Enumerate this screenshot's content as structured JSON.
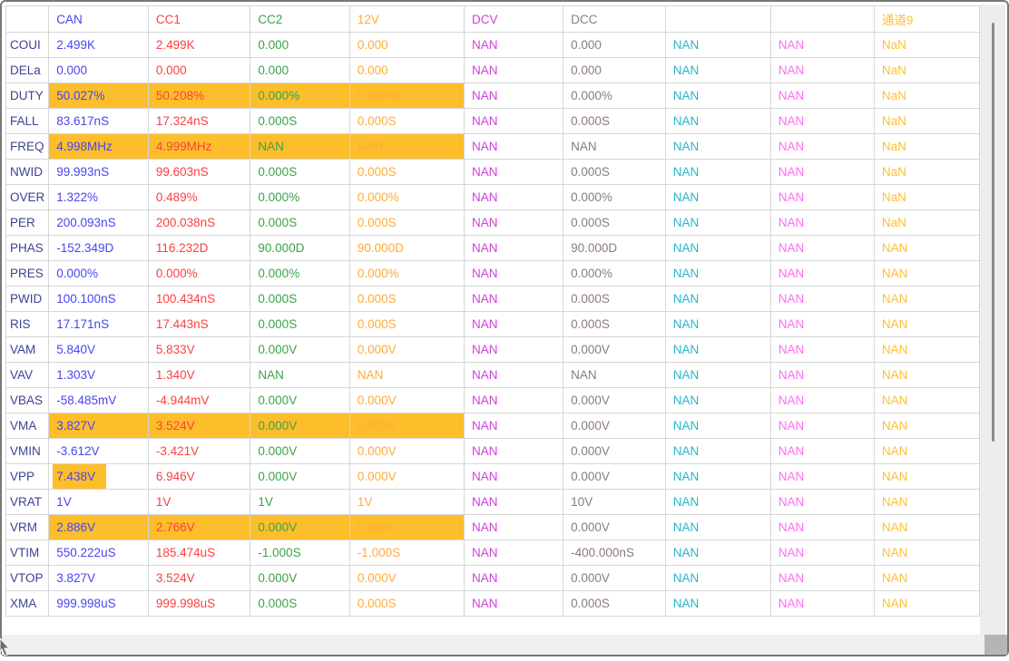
{
  "table": {
    "label_color": "#3d4393",
    "grid_color": "#d6d6d6",
    "highlight_color": "#fdbe2b",
    "columns": [
      {
        "label": "",
        "color": "#3d4393"
      },
      {
        "label": "CAN",
        "color": "#4845ef"
      },
      {
        "label": "CC1",
        "color": "#fc4040"
      },
      {
        "label": "CC2",
        "color": "#3ba449"
      },
      {
        "label": "12V",
        "color": "#ffab38"
      },
      {
        "label": "DCV",
        "color": "#cf42d8"
      },
      {
        "label": "DCC",
        "color": "#8a7d77"
      },
      {
        "label": "",
        "color": "#2ab5c9"
      },
      {
        "label": "",
        "color": "#ff6cf2"
      },
      {
        "label": "通道9",
        "color": "#fdc032"
      }
    ],
    "rows": [
      {
        "label": "COUI",
        "values": [
          "2.499K",
          "2.499K",
          "0.000",
          "0.000",
          "NAN",
          "0.000",
          "NAN",
          "NAN",
          "NaN"
        ],
        "highlight": []
      },
      {
        "label": "DELa",
        "values": [
          "0.000",
          "0.000",
          "0.000",
          "0.000",
          "NAN",
          "0.000",
          "NAN",
          "NAN",
          "NaN"
        ],
        "highlight": []
      },
      {
        "label": "DUTY",
        "values": [
          "50.027%",
          "50.208%",
          "0.000%",
          "0.000%",
          "NAN",
          "0.000%",
          "NAN",
          "NAN",
          "NaN"
        ],
        "highlight": [
          0,
          1,
          2,
          3
        ]
      },
      {
        "label": "FALL",
        "values": [
          "83.617nS",
          "17.324nS",
          "0.000S",
          "0.000S",
          "NAN",
          "0.000S",
          "NAN",
          "NAN",
          "NaN"
        ],
        "highlight": []
      },
      {
        "label": "FREQ",
        "values": [
          "4.998MHz",
          "4.999MHz",
          "NAN",
          "NAN",
          "NAN",
          "NAN",
          "NAN",
          "NAN",
          "NaN"
        ],
        "highlight": [
          0,
          1,
          2,
          3
        ]
      },
      {
        "label": "NWID",
        "values": [
          "99.993nS",
          "99.603nS",
          "0.000S",
          "0.000S",
          "NAN",
          "0.000S",
          "NAN",
          "NAN",
          "NaN"
        ],
        "highlight": []
      },
      {
        "label": "OVER",
        "values": [
          "1.322%",
          "0.489%",
          "0.000%",
          "0.000%",
          "NAN",
          "0.000%",
          "NAN",
          "NAN",
          "NaN"
        ],
        "highlight": []
      },
      {
        "label": "PER",
        "values": [
          "200.093nS",
          "200.038nS",
          "0.000S",
          "0.000S",
          "NAN",
          "0.000S",
          "NAN",
          "NAN",
          "NaN"
        ],
        "highlight": []
      },
      {
        "label": "PHAS",
        "values": [
          "-152.349D",
          "116.232D",
          "90.000D",
          "90.000D",
          "NAN",
          "90.000D",
          "NAN",
          "NAN",
          "NAN"
        ],
        "highlight": []
      },
      {
        "label": "PRES",
        "values": [
          "0.000%",
          "0.000%",
          "0.000%",
          "0.000%",
          "NAN",
          "0.000%",
          "NAN",
          "NAN",
          "NAN"
        ],
        "highlight": []
      },
      {
        "label": "PWID",
        "values": [
          "100.100nS",
          "100.434nS",
          "0.000S",
          "0.000S",
          "NAN",
          "0.000S",
          "NAN",
          "NAN",
          "NAN"
        ],
        "highlight": []
      },
      {
        "label": "RIS",
        "values": [
          "17.171nS",
          "17.443nS",
          "0.000S",
          "0.000S",
          "NAN",
          "0.000S",
          "NAN",
          "NAN",
          "NAN"
        ],
        "highlight": []
      },
      {
        "label": "VAM",
        "values": [
          "5.840V",
          "5.833V",
          "0.000V",
          "0.000V",
          "NAN",
          "0.000V",
          "NAN",
          "NAN",
          "NAN"
        ],
        "highlight": []
      },
      {
        "label": "VAV",
        "values": [
          "1.303V",
          "1.340V",
          "NAN",
          "NAN",
          "NAN",
          "NAN",
          "NAN",
          "NAN",
          "NAN"
        ],
        "highlight": []
      },
      {
        "label": "VBAS",
        "values": [
          "-58.485mV",
          "-4.944mV",
          "0.000V",
          "0.000V",
          "NAN",
          "0.000V",
          "NAN",
          "NAN",
          "NAN"
        ],
        "highlight": []
      },
      {
        "label": "VMA",
        "values": [
          "3.827V",
          "3.524V",
          "0.000V",
          "0.000V",
          "NAN",
          "0.000V",
          "NAN",
          "NAN",
          "NAN"
        ],
        "highlight": [
          0,
          1,
          2,
          3
        ]
      },
      {
        "label": "VMIN",
        "values": [
          "-3.612V",
          "-3.421V",
          "0.000V",
          "0.000V",
          "NAN",
          "0.000V",
          "NAN",
          "NAN",
          "NAN"
        ],
        "highlight": []
      },
      {
        "label": "VPP",
        "values": [
          "7.438V",
          "6.946V",
          "0.000V",
          "0.000V",
          "NAN",
          "0.000V",
          "NAN",
          "NAN",
          "NAN"
        ],
        "highlight": [
          0
        ],
        "highlight_inline": true
      },
      {
        "label": "VRAT",
        "values": [
          "1V",
          "1V",
          "1V",
          "1V",
          "NAN",
          "10V",
          "NAN",
          "NAN",
          "NAN"
        ],
        "highlight": []
      },
      {
        "label": "VRM",
        "values": [
          "2.886V",
          "2.766V",
          "0.000V",
          "0.000V",
          "NAN",
          "0.000V",
          "NAN",
          "NAN",
          "NAN"
        ],
        "highlight": [
          0,
          1,
          2,
          3
        ]
      },
      {
        "label": "VTIM",
        "values": [
          "550.222uS",
          "185.474uS",
          "-1.000S",
          "-1.000S",
          "NAN",
          "-400.000nS",
          "NAN",
          "NAN",
          "NAN"
        ],
        "highlight": []
      },
      {
        "label": "VTOP",
        "values": [
          "3.827V",
          "3.524V",
          "0.000V",
          "0.000V",
          "NAN",
          "0.000V",
          "NAN",
          "NAN",
          "NAN"
        ],
        "highlight": []
      },
      {
        "label": "XMA",
        "values": [
          "999.998uS",
          "999.998uS",
          "0.000S",
          "0.000S",
          "NAN",
          "0.000S",
          "NAN",
          "NAN",
          "NAN"
        ],
        "highlight": []
      }
    ]
  }
}
